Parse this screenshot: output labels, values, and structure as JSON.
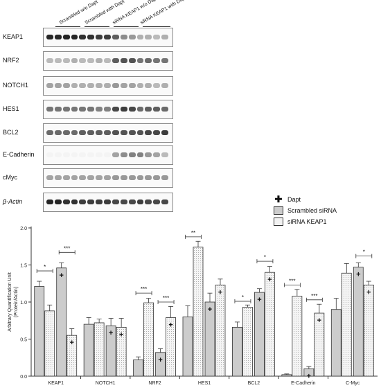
{
  "blot": {
    "lane_groups": [
      "Scrambled w/o Dapt",
      "Scrambled with Dapt",
      "siRNA KEAP1 w/o Dapt",
      "siRNA KEAP1 with Dapt"
    ],
    "rows": [
      {
        "label": "KEAP1",
        "intensity": [
          0.95,
          0.95,
          0.95,
          0.95,
          0.9,
          0.9,
          0.85,
          0.85,
          0.7,
          0.5,
          0.45,
          0.35,
          0.35,
          0.3,
          0.35
        ]
      },
      {
        "label": "NRF2",
        "intensity": [
          0.3,
          0.3,
          0.3,
          0.35,
          0.3,
          0.3,
          0.35,
          0.3,
          0.7,
          0.75,
          0.75,
          0.6,
          0.65,
          0.6,
          0.6
        ]
      },
      {
        "label": "NOTCH1",
        "intensity": [
          0.4,
          0.4,
          0.4,
          0.35,
          0.35,
          0.35,
          0.35,
          0.35,
          0.45,
          0.4,
          0.4,
          0.35,
          0.35,
          0.3,
          0.35
        ]
      },
      {
        "label": "HES1",
        "intensity": [
          0.6,
          0.6,
          0.6,
          0.6,
          0.6,
          0.6,
          0.55,
          0.55,
          0.8,
          0.85,
          0.8,
          0.65,
          0.7,
          0.7,
          0.65
        ]
      },
      {
        "label": "BCL2",
        "intensity": [
          0.65,
          0.65,
          0.65,
          0.65,
          0.7,
          0.7,
          0.7,
          0.7,
          0.75,
          0.75,
          0.75,
          0.75,
          0.8,
          0.8,
          0.85
        ]
      },
      {
        "label": "E-Cadherin",
        "intensity": [
          0.05,
          0.05,
          0.05,
          0.05,
          0.05,
          0.05,
          0.05,
          0.05,
          0.4,
          0.5,
          0.55,
          0.55,
          0.45,
          0.4,
          0.3
        ]
      },
      {
        "label": "cMyc",
        "intensity": [
          0.4,
          0.4,
          0.4,
          0.4,
          0.4,
          0.4,
          0.4,
          0.4,
          0.45,
          0.45,
          0.45,
          0.45,
          0.45,
          0.45,
          0.45
        ]
      },
      {
        "label": "β-Actin",
        "italic": true,
        "intensity": [
          0.95,
          0.95,
          0.9,
          0.9,
          0.85,
          0.85,
          0.85,
          0.85,
          0.8,
          0.8,
          0.8,
          0.85,
          0.8,
          0.8,
          0.8
        ]
      }
    ]
  },
  "legend": {
    "dapt_label": "Dapt",
    "scrambled_label": "Scrambled siRNA",
    "kd_label": "siRNA KEAP1"
  },
  "chart_data": {
    "type": "bar",
    "ylabel": "Arbitrary Quantification Unit (Protein/Actin)",
    "ylabel_lines": [
      "Arbitrary Quantification Unit",
      "(Protein/Actin)"
    ],
    "ylim": [
      0,
      2.0
    ],
    "yticks": [
      "0.0",
      "0.5",
      "1.0",
      "1.5",
      "2.0"
    ],
    "categories": [
      "KEAP1",
      "NOTCH1",
      "NRF2",
      "HES1",
      "BCL2",
      "E-Cadherin",
      "C-Myc"
    ],
    "bar_order": [
      {
        "siRNA": "scrambled",
        "dapt": false
      },
      {
        "siRNA": "KEAP1",
        "dapt": false
      },
      {
        "siRNA": "scrambled",
        "dapt": true
      },
      {
        "siRNA": "KEAP1",
        "dapt": true
      }
    ],
    "values": [
      [
        1.21,
        0.88,
        1.46,
        0.55
      ],
      [
        0.7,
        0.72,
        0.68,
        0.66
      ],
      [
        0.22,
        0.99,
        0.32,
        0.79
      ],
      [
        0.8,
        1.74,
        1.0,
        1.23
      ],
      [
        0.66,
        0.93,
        1.13,
        1.4
      ],
      [
        0.02,
        1.08,
        0.1,
        0.85
      ],
      [
        0.9,
        1.39,
        1.47,
        1.23
      ]
    ],
    "errors": [
      [
        0.07,
        0.08,
        0.07,
        0.09
      ],
      [
        0.09,
        0.05,
        0.1,
        0.12
      ],
      [
        0.04,
        0.06,
        0.05,
        0.15
      ],
      [
        0.15,
        0.08,
        0.12,
        0.08
      ],
      [
        0.07,
        0.03,
        0.05,
        0.08
      ],
      [
        0.01,
        0.09,
        0.03,
        0.12
      ],
      [
        0.15,
        0.13,
        0.06,
        0.05
      ]
    ],
    "significance": [
      {
        "category": 0,
        "bars": [
          0,
          1
        ],
        "label": "*",
        "y": 1.42
      },
      {
        "category": 0,
        "bars": [
          2,
          3
        ],
        "label": "***",
        "y": 1.67
      },
      {
        "category": 2,
        "bars": [
          0,
          1
        ],
        "label": "***",
        "y": 1.12
      },
      {
        "category": 2,
        "bars": [
          2,
          3
        ],
        "label": "***",
        "y": 1.0
      },
      {
        "category": 3,
        "bars": [
          0,
          1
        ],
        "label": "**",
        "y": 1.88
      },
      {
        "category": 4,
        "bars": [
          0,
          1
        ],
        "label": "*",
        "y": 1.01
      },
      {
        "category": 4,
        "bars": [
          2,
          3
        ],
        "label": "*",
        "y": 1.55
      },
      {
        "category": 5,
        "bars": [
          0,
          1
        ],
        "label": "***",
        "y": 1.23
      },
      {
        "category": 5,
        "bars": [
          2,
          3
        ],
        "label": "***",
        "y": 1.03
      },
      {
        "category": 6,
        "bars": [
          2,
          3
        ],
        "label": "*",
        "y": 1.62
      }
    ],
    "colors": {
      "scrambled": "#cccccc",
      "kd": "#f2f2f2",
      "axis": "#333333"
    }
  }
}
